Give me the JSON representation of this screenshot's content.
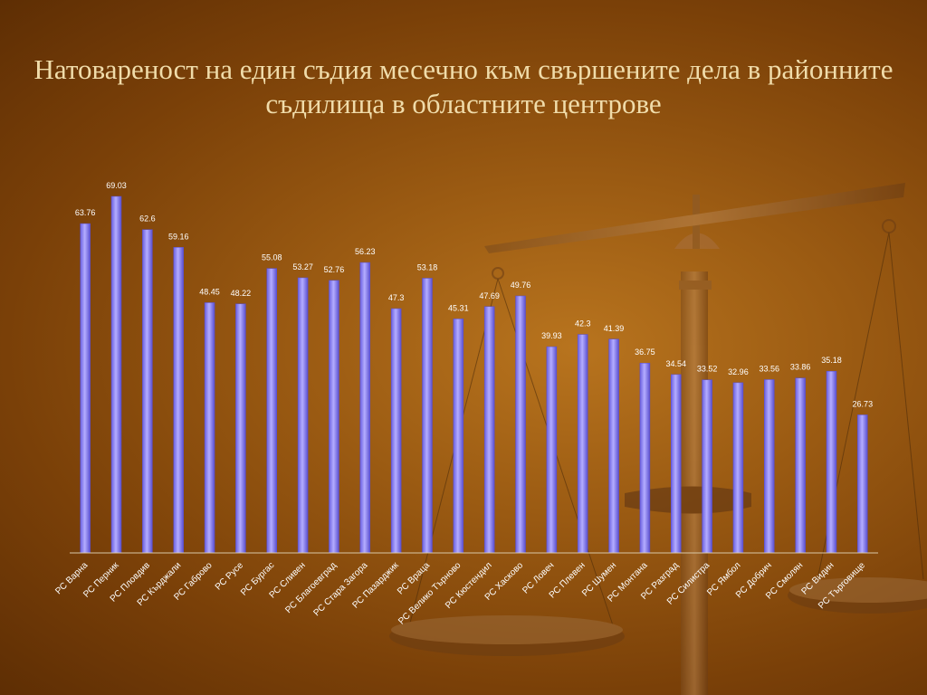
{
  "colors": {
    "bar": "#8f85f2",
    "bar_edge": "#5a4fd0",
    "label": "#ffffff",
    "title": "#f0dcaa"
  },
  "decoration": "scales-of-justice",
  "chart_data": {
    "type": "bar",
    "title": "Натовареност  на един съдия месечно към свършените дела в районните съдилища в областните центрове",
    "xlabel": "",
    "ylabel": "",
    "ylim": [
      0,
      70
    ],
    "grid": false,
    "legend": "none",
    "categories": [
      "РС Варна",
      "РС Перник",
      "РС Пловдив",
      "РС Кърджали",
      "РС Габрово",
      "РС Русе",
      "РС Бургас",
      "РС Сливен",
      "РС Благоевград",
      "РС Стара Загора",
      "РС Пазарджик",
      "РС Враца",
      "РС Велико Търново",
      "РС Кюстендил",
      "РС Хасково",
      "РС Ловеч",
      "РС Плевен",
      "РС Шумен",
      "РС Монтана",
      "РС Разград",
      "РС Силистра",
      "РС Ямбол",
      "РС Добрич",
      "РС  Смолян",
      "РС Видин",
      "РС Търговище"
    ],
    "values": [
      63.76,
      69.03,
      62.6,
      59.16,
      48.45,
      48.22,
      55.08,
      53.27,
      52.76,
      56.23,
      47.3,
      53.18,
      45.31,
      47.69,
      49.76,
      39.93,
      42.3,
      41.39,
      36.75,
      34.54,
      33.52,
      32.96,
      33.56,
      33.86,
      35.18,
      26.73
    ]
  }
}
